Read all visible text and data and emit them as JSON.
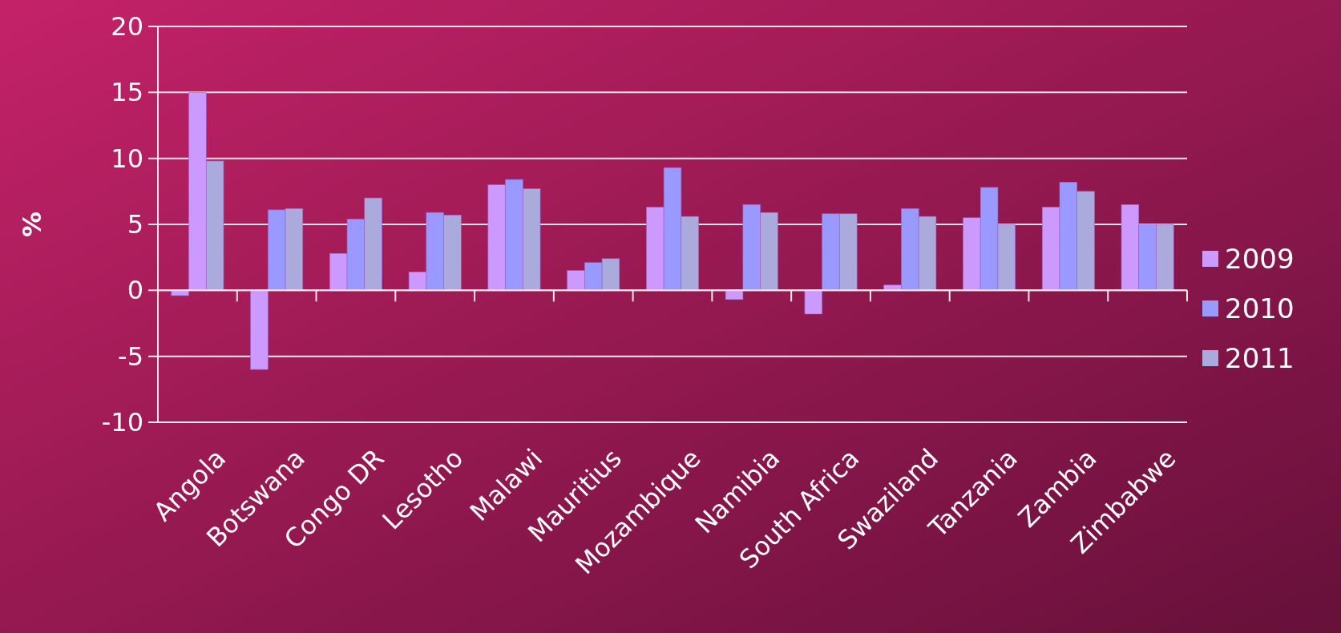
{
  "chart_data": {
    "type": "bar",
    "ylabel": "%",
    "categories": [
      "Angola",
      "Botswana",
      "Congo DR",
      "Lesotho",
      "Malawi",
      "Mauritius",
      "Mozambique",
      "Namibia",
      "South Africa",
      "Swaziland",
      "Tanzania",
      "Zambia",
      "Zimbabwe"
    ],
    "series": [
      {
        "name": "2009",
        "color": "#cc99ff",
        "values": [
          -0.4,
          -6.0,
          2.8,
          1.4,
          8.0,
          1.5,
          6.3,
          -0.7,
          -1.8,
          0.4,
          5.5,
          6.3,
          6.5
        ]
      },
      {
        "name": "2010",
        "color": "#9999ff",
        "colors": [
          "#cc99ff",
          "#9999ff",
          "#9999ff",
          "#9999ff",
          "#9999ff",
          "#9999ff",
          "#9999ff",
          "#9999ff",
          "#9999ff",
          "#9999ff",
          "#9999ff",
          "#9999ff",
          "#9999ff"
        ],
        "values": [
          15.0,
          6.1,
          5.4,
          5.9,
          8.4,
          2.1,
          9.3,
          6.5,
          5.8,
          6.2,
          7.8,
          8.2,
          5.0
        ]
      },
      {
        "name": "2011",
        "color": "#aaaadd",
        "values": [
          9.8,
          6.2,
          7.0,
          5.7,
          7.7,
          2.4,
          5.6,
          5.9,
          5.8,
          5.6,
          5.0,
          7.5,
          5.0
        ]
      }
    ],
    "ylim": [
      -10,
      20
    ],
    "yticks": [
      -10,
      -5,
      0,
      5,
      10,
      15,
      20
    ],
    "grid": "y",
    "legend": "right"
  }
}
